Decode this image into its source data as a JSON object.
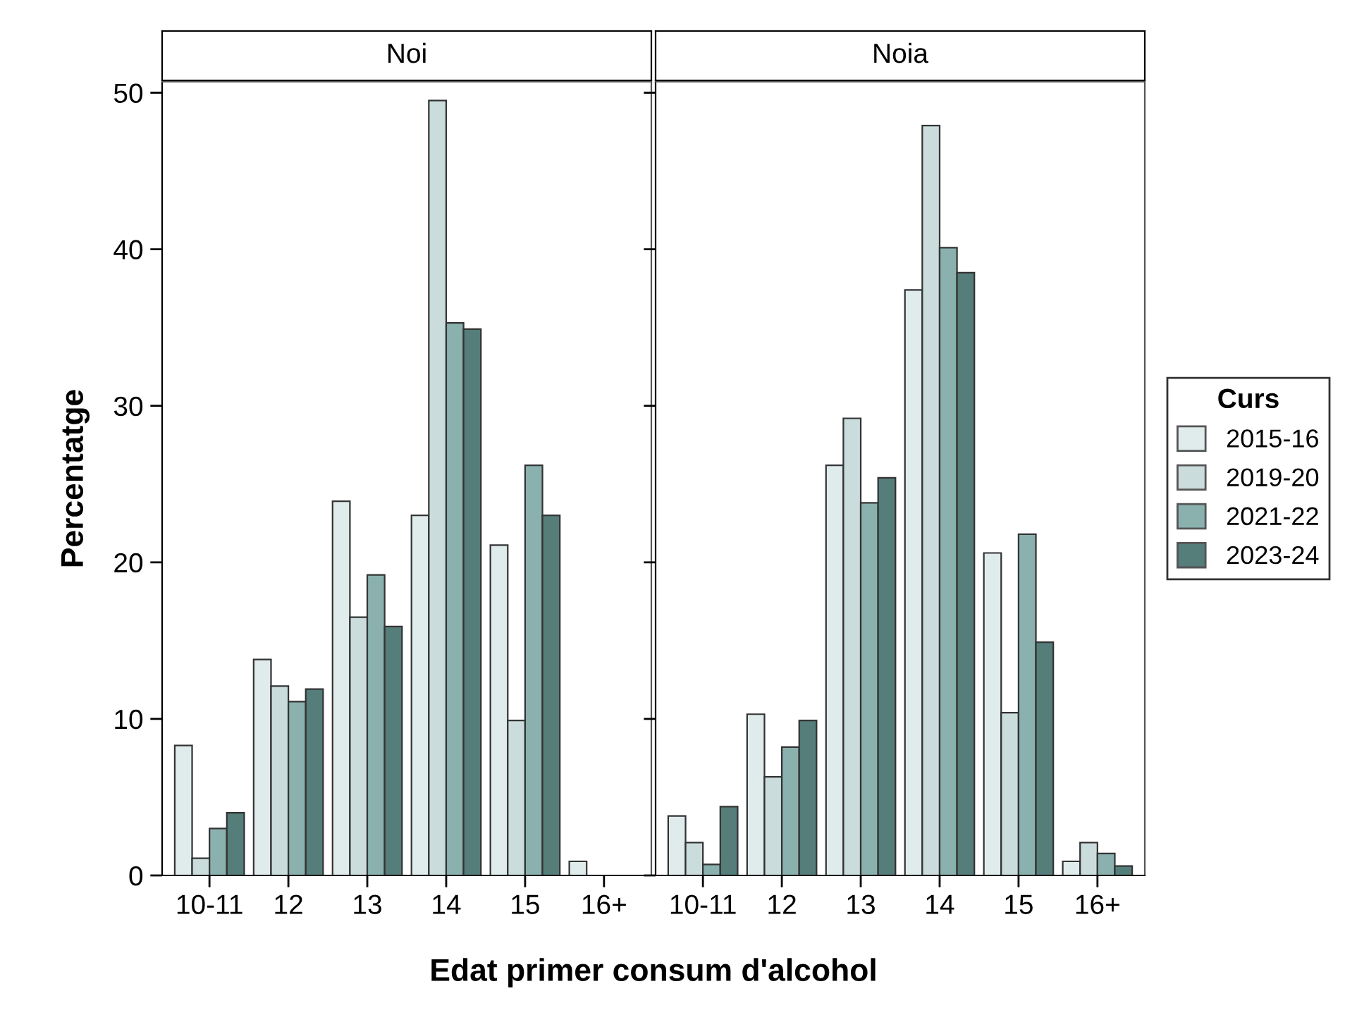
{
  "chart_data": [
    {
      "type": "bar",
      "title": "Noi",
      "ylabel": "Percentatge",
      "xlabel": "Edat primer consum d'alcohol",
      "categories": [
        "10-11",
        "12",
        "13",
        "14",
        "15",
        "16+"
      ],
      "ylim": [
        0,
        50.7
      ],
      "yticks": [
        0,
        10,
        20,
        30,
        40,
        50
      ],
      "legend": "right",
      "legend_title": "Curs",
      "grid": false,
      "series": [
        {
          "name": "2015-16",
          "color": "#e0ecec",
          "values": [
            8.3,
            13.8,
            23.9,
            23.0,
            21.1,
            0.9
          ]
        },
        {
          "name": "2019-20",
          "color": "#cbdcdc",
          "values": [
            1.1,
            12.1,
            16.5,
            49.5,
            9.9,
            null
          ]
        },
        {
          "name": "2021-22",
          "color": "#8ab1ae",
          "values": [
            3.0,
            11.1,
            19.2,
            35.3,
            26.2,
            null
          ]
        },
        {
          "name": "2023-24",
          "color": "#557d7a",
          "values": [
            4.0,
            11.9,
            15.9,
            34.9,
            23.0,
            null
          ]
        }
      ]
    },
    {
      "type": "bar",
      "title": "Noia",
      "categories": [
        "10-11",
        "12",
        "13",
        "14",
        "15",
        "16+"
      ],
      "ylim": [
        0,
        50.7
      ],
      "yticks": [
        0,
        10,
        20,
        30,
        40,
        50
      ],
      "tick_labels": "x",
      "grid": false,
      "series": [
        {
          "name": "2015-16",
          "color": "#e0ecec",
          "values": [
            3.8,
            10.3,
            26.2,
            37.4,
            20.6,
            0.9
          ]
        },
        {
          "name": "2019-20",
          "color": "#cbdcdc",
          "values": [
            2.1,
            6.3,
            29.2,
            47.9,
            10.4,
            2.1
          ]
        },
        {
          "name": "2021-22",
          "color": "#8ab1ae",
          "values": [
            0.7,
            8.2,
            23.8,
            40.1,
            21.8,
            1.4
          ]
        },
        {
          "name": "2023-24",
          "color": "#557d7a",
          "values": [
            4.4,
            9.9,
            25.4,
            38.5,
            14.9,
            0.6
          ]
        }
      ]
    }
  ]
}
